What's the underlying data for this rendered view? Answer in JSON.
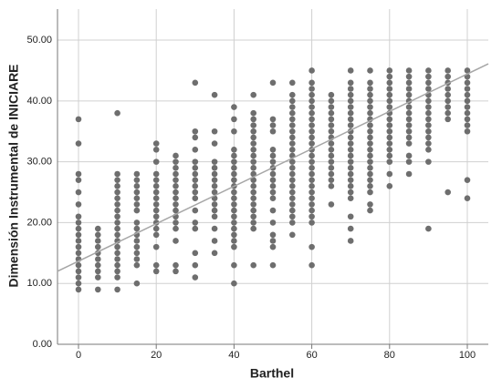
{
  "chart_data": {
    "type": "scatter",
    "x_label": "Barthel",
    "y_label": "Dimensión Instrumental de INICIARE",
    "xlim": [
      -5.4,
      105.4
    ],
    "ylim": [
      0,
      55.1
    ],
    "xticks": [
      0,
      20,
      40,
      60,
      80,
      100
    ],
    "yticks": [
      {
        "value": 0,
        "label": "0.00"
      },
      {
        "value": 10,
        "label": "10.00"
      },
      {
        "value": 20,
        "label": "20.00"
      },
      {
        "value": 30,
        "label": "30.00"
      },
      {
        "value": 40,
        "label": "40.00"
      },
      {
        "value": 50,
        "label": "50.00"
      }
    ],
    "grid": true,
    "color": "#6e6e6e",
    "fit_line": {
      "x": [
        -5.4,
        105.4
      ],
      "y": [
        12,
        46.1
      ],
      "color": "#a6a6a6"
    },
    "points": [
      [
        0,
        9
      ],
      [
        0,
        10
      ],
      [
        0,
        11
      ],
      [
        0,
        12
      ],
      [
        0,
        13
      ],
      [
        0,
        14
      ],
      [
        0,
        15
      ],
      [
        0,
        16
      ],
      [
        0,
        17
      ],
      [
        0,
        18
      ],
      [
        0,
        19
      ],
      [
        0,
        20
      ],
      [
        0,
        21
      ],
      [
        0,
        23
      ],
      [
        0,
        25
      ],
      [
        0,
        27
      ],
      [
        0,
        28
      ],
      [
        0,
        33
      ],
      [
        0,
        37
      ],
      [
        5,
        9
      ],
      [
        5,
        11
      ],
      [
        5,
        12
      ],
      [
        5,
        13
      ],
      [
        5,
        14
      ],
      [
        5,
        15
      ],
      [
        5,
        16
      ],
      [
        5,
        17
      ],
      [
        5,
        18
      ],
      [
        5,
        19
      ],
      [
        10,
        9
      ],
      [
        10,
        11
      ],
      [
        10,
        12
      ],
      [
        10,
        13
      ],
      [
        10,
        14
      ],
      [
        10,
        15
      ],
      [
        10,
        16
      ],
      [
        10,
        17
      ],
      [
        10,
        18
      ],
      [
        10,
        19
      ],
      [
        10,
        20
      ],
      [
        10,
        21
      ],
      [
        10,
        22
      ],
      [
        10,
        23
      ],
      [
        10,
        24
      ],
      [
        10,
        25
      ],
      [
        10,
        26
      ],
      [
        10,
        27
      ],
      [
        10,
        28
      ],
      [
        10,
        38
      ],
      [
        15,
        10
      ],
      [
        15,
        13
      ],
      [
        15,
        14
      ],
      [
        15,
        15
      ],
      [
        15,
        16
      ],
      [
        15,
        17
      ],
      [
        15,
        18
      ],
      [
        15,
        19
      ],
      [
        15,
        20
      ],
      [
        15,
        22
      ],
      [
        15,
        23
      ],
      [
        15,
        24
      ],
      [
        15,
        25
      ],
      [
        15,
        26
      ],
      [
        15,
        27
      ],
      [
        15,
        28
      ],
      [
        20,
        12
      ],
      [
        20,
        13
      ],
      [
        20,
        16
      ],
      [
        20,
        18
      ],
      [
        20,
        19
      ],
      [
        20,
        20
      ],
      [
        20,
        21
      ],
      [
        20,
        22
      ],
      [
        20,
        23
      ],
      [
        20,
        24
      ],
      [
        20,
        25
      ],
      [
        20,
        26
      ],
      [
        20,
        27
      ],
      [
        20,
        28
      ],
      [
        20,
        30
      ],
      [
        20,
        32
      ],
      [
        20,
        33
      ],
      [
        25,
        12
      ],
      [
        25,
        13
      ],
      [
        25,
        17
      ],
      [
        25,
        19
      ],
      [
        25,
        20
      ],
      [
        25,
        21
      ],
      [
        25,
        22
      ],
      [
        25,
        23
      ],
      [
        25,
        24
      ],
      [
        25,
        25
      ],
      [
        25,
        26
      ],
      [
        25,
        27
      ],
      [
        25,
        28
      ],
      [
        25,
        29
      ],
      [
        25,
        30
      ],
      [
        25,
        31
      ],
      [
        30,
        11
      ],
      [
        30,
        13
      ],
      [
        30,
        15
      ],
      [
        30,
        19
      ],
      [
        30,
        20
      ],
      [
        30,
        22
      ],
      [
        30,
        24
      ],
      [
        30,
        25
      ],
      [
        30,
        26
      ],
      [
        30,
        27
      ],
      [
        30,
        28
      ],
      [
        30,
        29
      ],
      [
        30,
        30
      ],
      [
        30,
        32
      ],
      [
        30,
        34
      ],
      [
        30,
        35
      ],
      [
        30,
        43
      ],
      [
        35,
        15
      ],
      [
        35,
        17
      ],
      [
        35,
        19
      ],
      [
        35,
        21
      ],
      [
        35,
        22
      ],
      [
        35,
        23
      ],
      [
        35,
        24
      ],
      [
        35,
        25
      ],
      [
        35,
        26
      ],
      [
        35,
        27
      ],
      [
        35,
        28
      ],
      [
        35,
        29
      ],
      [
        35,
        30
      ],
      [
        35,
        33
      ],
      [
        35,
        35
      ],
      [
        35,
        41
      ],
      [
        40,
        10
      ],
      [
        40,
        13
      ],
      [
        40,
        16
      ],
      [
        40,
        17
      ],
      [
        40,
        18
      ],
      [
        40,
        19
      ],
      [
        40,
        20
      ],
      [
        40,
        21
      ],
      [
        40,
        22
      ],
      [
        40,
        23
      ],
      [
        40,
        24
      ],
      [
        40,
        25
      ],
      [
        40,
        26
      ],
      [
        40,
        27
      ],
      [
        40,
        28
      ],
      [
        40,
        29
      ],
      [
        40,
        30
      ],
      [
        40,
        31
      ],
      [
        40,
        32
      ],
      [
        40,
        35
      ],
      [
        40,
        37
      ],
      [
        40,
        39
      ],
      [
        45,
        13
      ],
      [
        45,
        19
      ],
      [
        45,
        20
      ],
      [
        45,
        21
      ],
      [
        45,
        22
      ],
      [
        45,
        23
      ],
      [
        45,
        24
      ],
      [
        45,
        25
      ],
      [
        45,
        26
      ],
      [
        45,
        27
      ],
      [
        45,
        28
      ],
      [
        45,
        29
      ],
      [
        45,
        30
      ],
      [
        45,
        31
      ],
      [
        45,
        32
      ],
      [
        45,
        33
      ],
      [
        45,
        34
      ],
      [
        45,
        35
      ],
      [
        45,
        36
      ],
      [
        45,
        37
      ],
      [
        45,
        38
      ],
      [
        45,
        41
      ],
      [
        50,
        13
      ],
      [
        50,
        16
      ],
      [
        50,
        17
      ],
      [
        50,
        18
      ],
      [
        50,
        20
      ],
      [
        50,
        22
      ],
      [
        50,
        24
      ],
      [
        50,
        25
      ],
      [
        50,
        26
      ],
      [
        50,
        27
      ],
      [
        50,
        28
      ],
      [
        50,
        29
      ],
      [
        50,
        30
      ],
      [
        50,
        31
      ],
      [
        50,
        32
      ],
      [
        50,
        35
      ],
      [
        50,
        36
      ],
      [
        50,
        37
      ],
      [
        50,
        43
      ],
      [
        55,
        18
      ],
      [
        55,
        20
      ],
      [
        55,
        21
      ],
      [
        55,
        22
      ],
      [
        55,
        23
      ],
      [
        55,
        24
      ],
      [
        55,
        25
      ],
      [
        55,
        26
      ],
      [
        55,
        27
      ],
      [
        55,
        28
      ],
      [
        55,
        29
      ],
      [
        55,
        30
      ],
      [
        55,
        31
      ],
      [
        55,
        32
      ],
      [
        55,
        33
      ],
      [
        55,
        34
      ],
      [
        55,
        35
      ],
      [
        55,
        36
      ],
      [
        55,
        37
      ],
      [
        55,
        38
      ],
      [
        55,
        39
      ],
      [
        55,
        40
      ],
      [
        55,
        41
      ],
      [
        55,
        43
      ],
      [
        60,
        13
      ],
      [
        60,
        16
      ],
      [
        60,
        20
      ],
      [
        60,
        21
      ],
      [
        60,
        22
      ],
      [
        60,
        23
      ],
      [
        60,
        24
      ],
      [
        60,
        25
      ],
      [
        60,
        26
      ],
      [
        60,
        27
      ],
      [
        60,
        28
      ],
      [
        60,
        29
      ],
      [
        60,
        30
      ],
      [
        60,
        31
      ],
      [
        60,
        32
      ],
      [
        60,
        33
      ],
      [
        60,
        34
      ],
      [
        60,
        35
      ],
      [
        60,
        36
      ],
      [
        60,
        37
      ],
      [
        60,
        38
      ],
      [
        60,
        39
      ],
      [
        60,
        40
      ],
      [
        60,
        41
      ],
      [
        60,
        42
      ],
      [
        60,
        43
      ],
      [
        60,
        45
      ],
      [
        65,
        23
      ],
      [
        65,
        26
      ],
      [
        65,
        27
      ],
      [
        65,
        28
      ],
      [
        65,
        29
      ],
      [
        65,
        30
      ],
      [
        65,
        31
      ],
      [
        65,
        32
      ],
      [
        65,
        33
      ],
      [
        65,
        34
      ],
      [
        65,
        35
      ],
      [
        65,
        36
      ],
      [
        65,
        37
      ],
      [
        65,
        38
      ],
      [
        65,
        39
      ],
      [
        65,
        40
      ],
      [
        65,
        41
      ],
      [
        70,
        17
      ],
      [
        70,
        19
      ],
      [
        70,
        21
      ],
      [
        70,
        24
      ],
      [
        70,
        25
      ],
      [
        70,
        26
      ],
      [
        70,
        27
      ],
      [
        70,
        28
      ],
      [
        70,
        29
      ],
      [
        70,
        30
      ],
      [
        70,
        31
      ],
      [
        70,
        32
      ],
      [
        70,
        33
      ],
      [
        70,
        34
      ],
      [
        70,
        35
      ],
      [
        70,
        36
      ],
      [
        70,
        37
      ],
      [
        70,
        38
      ],
      [
        70,
        39
      ],
      [
        70,
        40
      ],
      [
        70,
        41
      ],
      [
        70,
        42
      ],
      [
        70,
        43
      ],
      [
        70,
        45
      ],
      [
        75,
        22
      ],
      [
        75,
        23
      ],
      [
        75,
        25
      ],
      [
        75,
        26
      ],
      [
        75,
        27
      ],
      [
        75,
        28
      ],
      [
        75,
        29
      ],
      [
        75,
        30
      ],
      [
        75,
        31
      ],
      [
        75,
        32
      ],
      [
        75,
        33
      ],
      [
        75,
        34
      ],
      [
        75,
        35
      ],
      [
        75,
        36
      ],
      [
        75,
        37
      ],
      [
        75,
        38
      ],
      [
        75,
        39
      ],
      [
        75,
        40
      ],
      [
        75,
        41
      ],
      [
        75,
        42
      ],
      [
        75,
        43
      ],
      [
        75,
        45
      ],
      [
        80,
        26
      ],
      [
        80,
        28
      ],
      [
        80,
        30
      ],
      [
        80,
        31
      ],
      [
        80,
        32
      ],
      [
        80,
        33
      ],
      [
        80,
        34
      ],
      [
        80,
        35
      ],
      [
        80,
        36
      ],
      [
        80,
        37
      ],
      [
        80,
        38
      ],
      [
        80,
        39
      ],
      [
        80,
        40
      ],
      [
        80,
        41
      ],
      [
        80,
        42
      ],
      [
        80,
        43
      ],
      [
        80,
        44
      ],
      [
        80,
        45
      ],
      [
        85,
        28
      ],
      [
        85,
        30
      ],
      [
        85,
        31
      ],
      [
        85,
        33
      ],
      [
        85,
        34
      ],
      [
        85,
        35
      ],
      [
        85,
        36
      ],
      [
        85,
        37
      ],
      [
        85,
        38
      ],
      [
        85,
        39
      ],
      [
        85,
        40
      ],
      [
        85,
        41
      ],
      [
        85,
        42
      ],
      [
        85,
        43
      ],
      [
        85,
        44
      ],
      [
        85,
        45
      ],
      [
        90,
        19
      ],
      [
        90,
        30
      ],
      [
        90,
        32
      ],
      [
        90,
        33
      ],
      [
        90,
        34
      ],
      [
        90,
        35
      ],
      [
        90,
        36
      ],
      [
        90,
        37
      ],
      [
        90,
        38
      ],
      [
        90,
        39
      ],
      [
        90,
        40
      ],
      [
        90,
        41
      ],
      [
        90,
        42
      ],
      [
        90,
        43
      ],
      [
        90,
        44
      ],
      [
        90,
        45
      ],
      [
        95,
        25
      ],
      [
        95,
        37
      ],
      [
        95,
        38
      ],
      [
        95,
        39
      ],
      [
        95,
        40
      ],
      [
        95,
        41
      ],
      [
        95,
        42
      ],
      [
        95,
        43
      ],
      [
        95,
        44
      ],
      [
        95,
        45
      ],
      [
        100,
        24
      ],
      [
        100,
        27
      ],
      [
        100,
        35
      ],
      [
        100,
        36
      ],
      [
        100,
        37
      ],
      [
        100,
        38
      ],
      [
        100,
        39
      ],
      [
        100,
        40
      ],
      [
        100,
        41
      ],
      [
        100,
        42
      ],
      [
        100,
        43
      ],
      [
        100,
        44
      ],
      [
        100,
        45
      ]
    ]
  }
}
